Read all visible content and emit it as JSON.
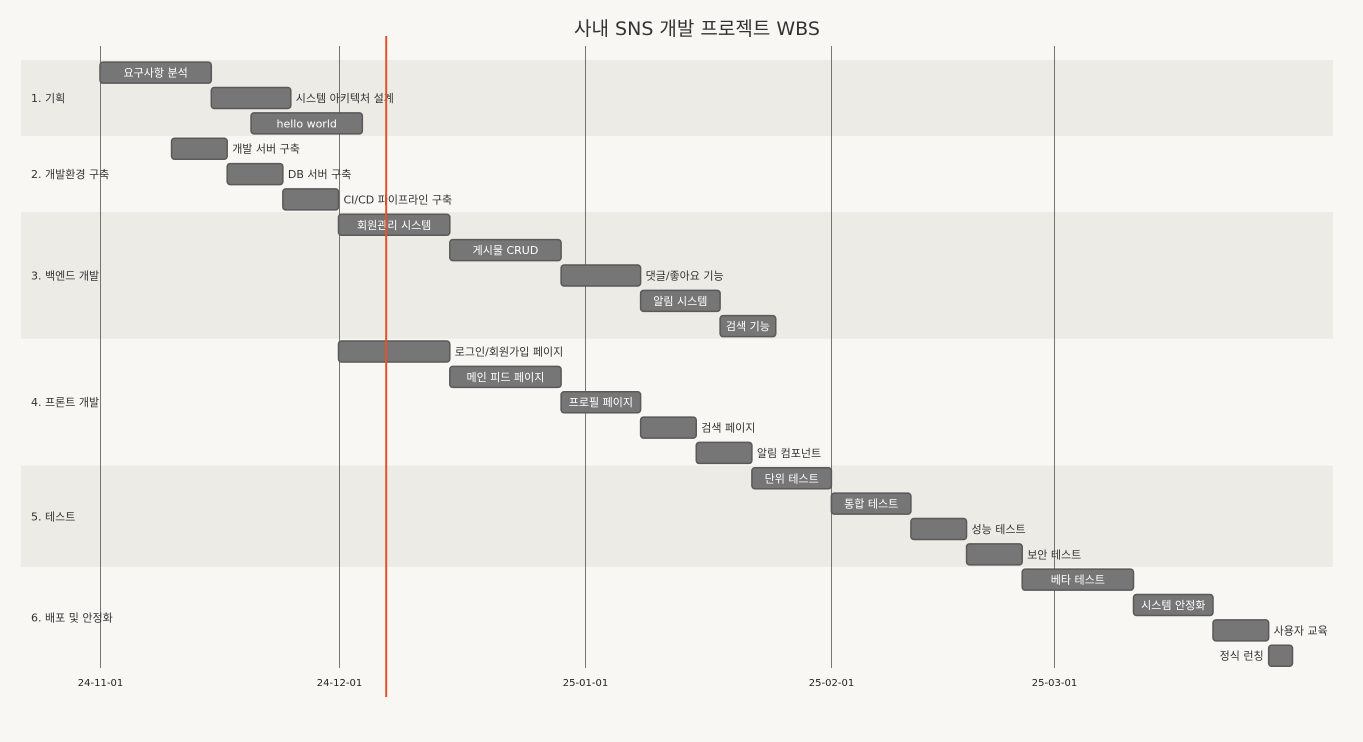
{
  "chart_data": {
    "type": "gantt",
    "title": "사내 SNS 개발 프로젝트 WBS",
    "x_axis": {
      "type": "date",
      "range": [
        "2024-11-01",
        "2025-04-01"
      ],
      "tick_values": [
        "2024-11-01",
        "2024-12-01",
        "2025-01-01",
        "2025-02-01",
        "2025-03-01"
      ],
      "tick_labels": [
        "24-11-01",
        "24-12-01",
        "25-01-01",
        "25-02-01",
        "25-03-01"
      ],
      "grid": true
    },
    "today": "2024-12-07",
    "colors": {
      "bar_fill": "#767676",
      "bar_stroke": "#595959",
      "today_line": "#e0542c",
      "section_band_a": "#edebe6",
      "section_band_b": "#f8f7f3",
      "grid_line": "#555555"
    },
    "sections": [
      {
        "name": "1. 기획",
        "tasks": [
          {
            "name": "요구사항 분석",
            "start": "2024-11-01",
            "end": "2024-11-15",
            "label": "inside"
          },
          {
            "name": "시스템 아키텍처 설계",
            "start": "2024-11-15",
            "end": "2024-11-25",
            "label": "outside"
          },
          {
            "name": "hello world",
            "start": "2024-11-20",
            "end": "2024-12-04",
            "label": "inside"
          }
        ]
      },
      {
        "name": "2. 개발환경 구축",
        "tasks": [
          {
            "name": "개발 서버 구축",
            "start": "2024-11-10",
            "end": "2024-11-17",
            "label": "outside"
          },
          {
            "name": "DB 서버 구축",
            "start": "2024-11-17",
            "end": "2024-11-24",
            "label": "outside"
          },
          {
            "name": "CI/CD 파이프라인 구축",
            "start": "2024-11-24",
            "end": "2024-12-01",
            "label": "outside"
          }
        ]
      },
      {
        "name": "3. 백엔드 개발",
        "tasks": [
          {
            "name": "회원관리 시스템",
            "start": "2024-12-01",
            "end": "2024-12-15",
            "label": "inside"
          },
          {
            "name": "게시물 CRUD",
            "start": "2024-12-15",
            "end": "2024-12-29",
            "label": "inside"
          },
          {
            "name": "댓글/좋아요 기능",
            "start": "2024-12-29",
            "end": "2025-01-08",
            "label": "outside"
          },
          {
            "name": "알림 시스템",
            "start": "2025-01-08",
            "end": "2025-01-18",
            "label": "inside"
          },
          {
            "name": "검색 기능",
            "start": "2025-01-18",
            "end": "2025-01-25",
            "label": "inside"
          }
        ]
      },
      {
        "name": "4. 프론트 개발",
        "tasks": [
          {
            "name": "로그인/회원가입 페이지",
            "start": "2024-12-01",
            "end": "2024-12-15",
            "label": "outside"
          },
          {
            "name": "메인 피드 페이지",
            "start": "2024-12-15",
            "end": "2024-12-29",
            "label": "inside"
          },
          {
            "name": "프로필 페이지",
            "start": "2024-12-29",
            "end": "2025-01-08",
            "label": "inside"
          },
          {
            "name": "검색 페이지",
            "start": "2025-01-08",
            "end": "2025-01-15",
            "label": "outside"
          },
          {
            "name": "알림 컴포넌트",
            "start": "2025-01-15",
            "end": "2025-01-22",
            "label": "outside"
          }
        ]
      },
      {
        "name": "5. 테스트",
        "tasks": [
          {
            "name": "단위 테스트",
            "start": "2025-01-22",
            "end": "2025-02-01",
            "label": "inside"
          },
          {
            "name": "통합 테스트",
            "start": "2025-02-01",
            "end": "2025-02-11",
            "label": "inside"
          },
          {
            "name": "성능 테스트",
            "start": "2025-02-11",
            "end": "2025-02-18",
            "label": "outside"
          },
          {
            "name": "보안 테스트",
            "start": "2025-02-18",
            "end": "2025-02-25",
            "label": "outside"
          }
        ]
      },
      {
        "name": "6. 배포 및 안정화",
        "tasks": [
          {
            "name": "베타 테스트",
            "start": "2025-02-25",
            "end": "2025-03-11",
            "label": "inside"
          },
          {
            "name": "시스템 안정화",
            "start": "2025-03-11",
            "end": "2025-03-21",
            "label": "inside"
          },
          {
            "name": "사용자 교육",
            "start": "2025-03-21",
            "end": "2025-03-28",
            "label": "outside"
          },
          {
            "name": "정식 런칭",
            "start": "2025-03-28",
            "end": "2025-03-31",
            "label": "outside-left"
          }
        ]
      }
    ]
  }
}
